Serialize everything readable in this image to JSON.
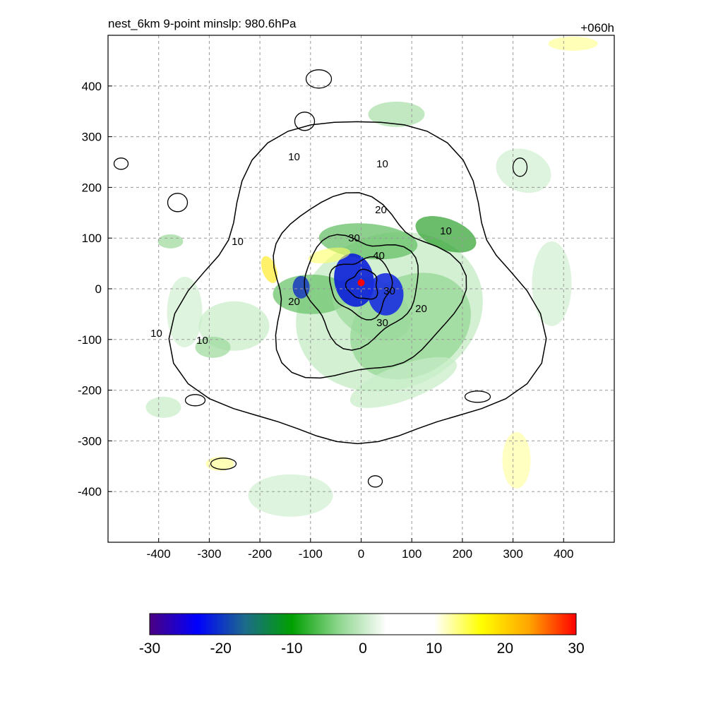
{
  "chart_data": {
    "type": "heatmap",
    "title_left": "nest_6km  9-point minslp: 980.6hPa",
    "title_right": "+060h",
    "xlim": [
      -500,
      500
    ],
    "ylim": [
      -500,
      500
    ],
    "xticks": [
      -400,
      -300,
      -200,
      -100,
      0,
      100,
      200,
      300,
      400
    ],
    "yticks": [
      400,
      300,
      200,
      100,
      0,
      -100,
      -200,
      -300,
      -400
    ],
    "grid": true,
    "colorbar": {
      "min": -30,
      "max": 30,
      "ticks": [
        -30,
        -20,
        -10,
        0,
        10,
        20,
        30
      ],
      "stops": [
        "#4b0082",
        "#0000ff",
        "#1c6a8c",
        "#00a000",
        "#8fd68f",
        "#ffffff",
        "#ffffff",
        "#ffff00",
        "#ffa500",
        "#ff0000"
      ]
    },
    "contours": [
      {
        "level": 10,
        "radius_scale": 1.0
      },
      {
        "level": 20,
        "radius_scale": 0.55
      },
      {
        "level": 30,
        "radius_scale": 0.33
      },
      {
        "level": 40,
        "radius_scale": 0.18
      },
      {
        "level": 50,
        "radius_scale": 0.09
      }
    ],
    "contour_labels": [
      "10",
      "10",
      "10",
      "10",
      "10",
      "10",
      "20",
      "20",
      "20",
      "30",
      "30",
      "40",
      "30"
    ],
    "center_marker": {
      "x": 0,
      "y": 12,
      "color": "#ff0000"
    }
  }
}
